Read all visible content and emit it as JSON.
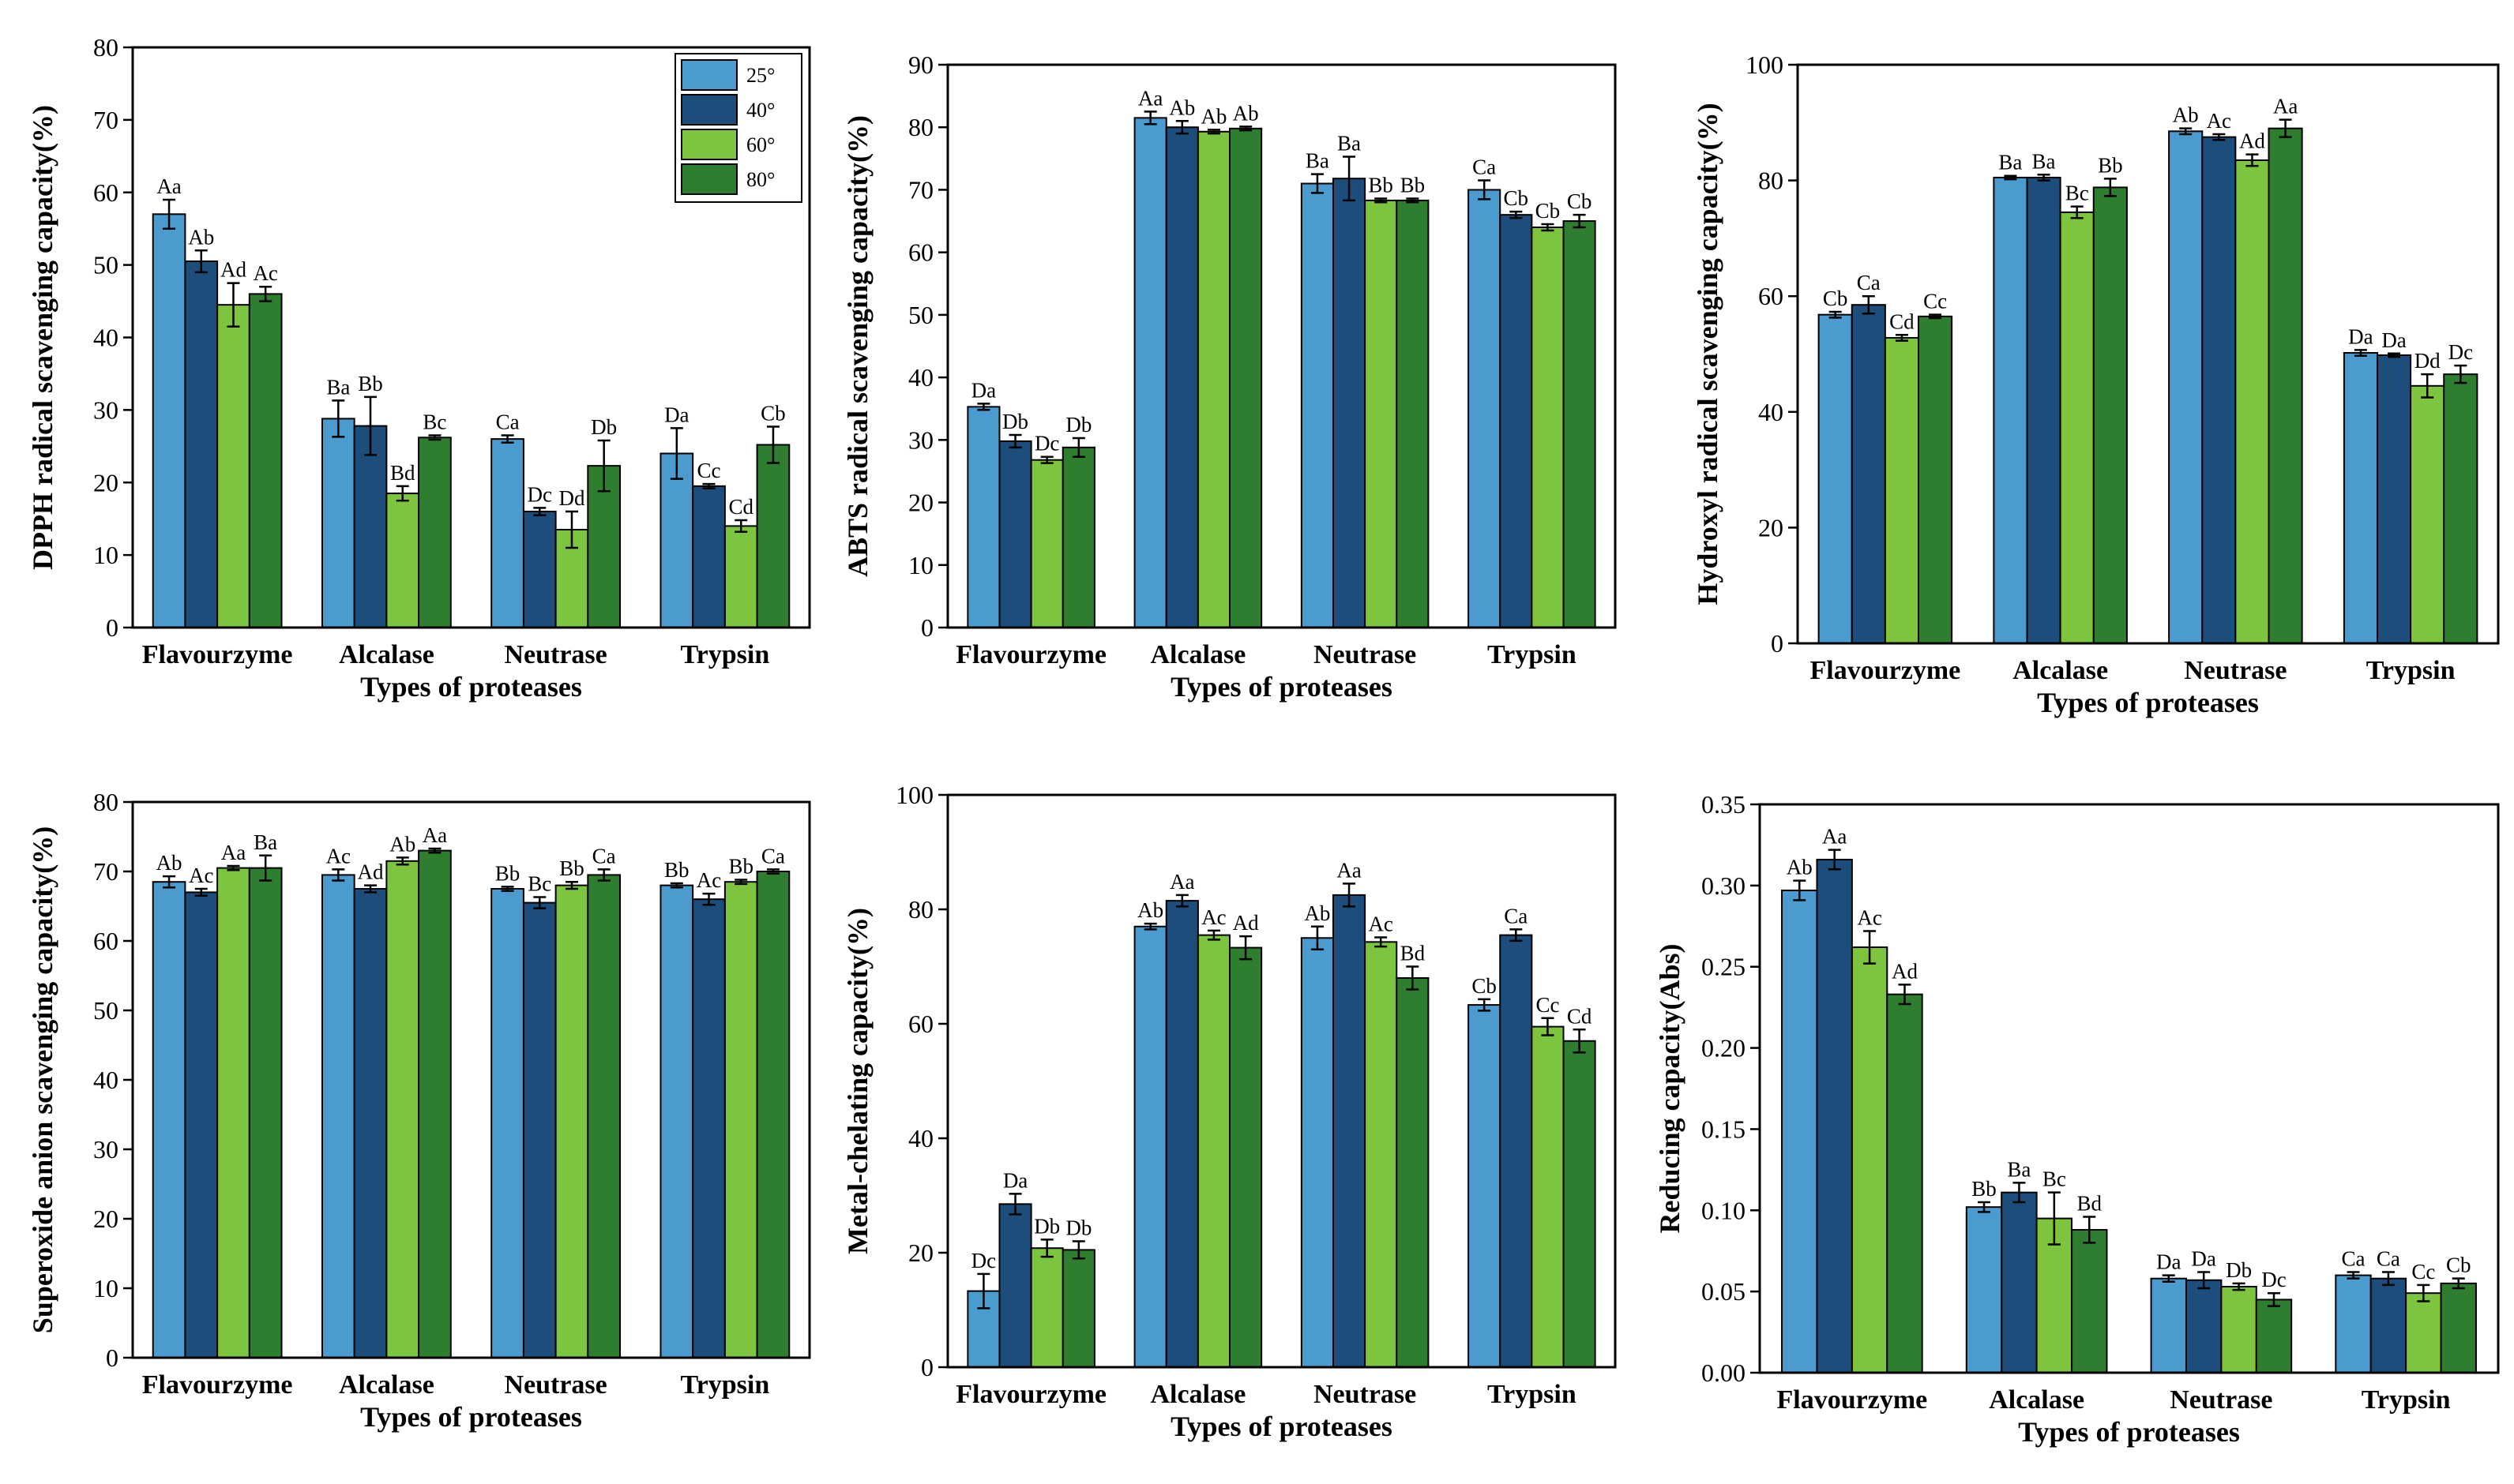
{
  "legend": {
    "labels": [
      "25°",
      "40°",
      "60°",
      "80°"
    ],
    "colors": [
      "#4b9bcf",
      "#1d4d7a",
      "#7ec53f",
      "#2f7d2f"
    ]
  },
  "chart_data": [
    {
      "type": "bar",
      "categories": [
        "Flavourzyme",
        "Alcalase",
        "Neutrase",
        "Trypsin"
      ],
      "xlabel": "Types of proteases",
      "ylabel": "DPPH radical scavenging capacity(%)",
      "ylim": [
        0,
        80
      ],
      "yticks": [
        "0",
        "10",
        "20",
        "30",
        "40",
        "50",
        "60",
        "70",
        "80"
      ],
      "legend_shown": true,
      "series": [
        {
          "name": "25°",
          "values": [
            57,
            28.8,
            26,
            24
          ],
          "errors": [
            2,
            2.5,
            0.5,
            3.5
          ],
          "labels": [
            "Aa",
            "Ba",
            "Ca",
            "Da"
          ]
        },
        {
          "name": "40°",
          "values": [
            50.5,
            27.8,
            16,
            19.5
          ],
          "errors": [
            1.5,
            4,
            0.5,
            0.3
          ],
          "labels": [
            "Ab",
            "Bb",
            "Dc",
            "Cc"
          ]
        },
        {
          "name": "60°",
          "values": [
            44.5,
            18.5,
            13.5,
            14
          ],
          "errors": [
            3,
            1,
            2.5,
            0.8
          ],
          "labels": [
            "Ad",
            "Bd",
            "Dd",
            "Cd"
          ]
        },
        {
          "name": "80°",
          "values": [
            46,
            26.2,
            22.3,
            25.2
          ],
          "errors": [
            1,
            0.3,
            3.5,
            2.5
          ],
          "labels": [
            "Ac",
            "Bc",
            "Db",
            "Cb"
          ]
        }
      ]
    },
    {
      "type": "bar",
      "categories": [
        "Flavourzyme",
        "Alcalase",
        "Neutrase",
        "Trypsin"
      ],
      "xlabel": "Types of proteases",
      "ylabel": "ABTS radical scavenging capacity(%)",
      "ylim": [
        0,
        90
      ],
      "yticks": [
        "0",
        "10",
        "20",
        "30",
        "40",
        "50",
        "60",
        "70",
        "80",
        "90"
      ],
      "legend_shown": false,
      "series": [
        {
          "name": "25°",
          "values": [
            35.3,
            81.5,
            71,
            70
          ],
          "errors": [
            0.5,
            1,
            1.5,
            1.5
          ],
          "labels": [
            "Da",
            "Aa",
            "Ba",
            "Ca"
          ]
        },
        {
          "name": "40°",
          "values": [
            29.8,
            80,
            71.8,
            66
          ],
          "errors": [
            1,
            1,
            3.5,
            0.5
          ],
          "labels": [
            "Db",
            "Ab",
            "Ba",
            "Cb"
          ]
        },
        {
          "name": "60°",
          "values": [
            26.8,
            79.3,
            68.3,
            64
          ],
          "errors": [
            0.5,
            0.3,
            0.3,
            0.5
          ],
          "labels": [
            "Dc",
            "Ab",
            "Bb",
            "Cb"
          ]
        },
        {
          "name": "80°",
          "values": [
            28.8,
            79.8,
            68.3,
            65
          ],
          "errors": [
            1.5,
            0.3,
            0.3,
            1
          ],
          "labels": [
            "Db",
            "Ab",
            "Bb",
            "Cb"
          ]
        }
      ]
    },
    {
      "type": "bar",
      "categories": [
        "Flavourzyme",
        "Alcalase",
        "Neutrase",
        "Trypsin"
      ],
      "xlabel": "Types of proteases",
      "ylabel": "Hydroxyl radical scavenging capacity(%)",
      "ylim": [
        0,
        100
      ],
      "yticks": [
        "0",
        "20",
        "40",
        "60",
        "80",
        "100"
      ],
      "legend_shown": false,
      "series": [
        {
          "name": "25°",
          "values": [
            56.8,
            80.5,
            88.5,
            50.2
          ],
          "errors": [
            0.5,
            0.3,
            0.5,
            0.5
          ],
          "labels": [
            "Cb",
            "Ba",
            "Ab",
            "Da"
          ]
        },
        {
          "name": "40°",
          "values": [
            58.5,
            80.5,
            87.5,
            49.8
          ],
          "errors": [
            1.5,
            0.5,
            0.5,
            0.3
          ],
          "labels": [
            "Ca",
            "Ba",
            "Ac",
            "Da"
          ]
        },
        {
          "name": "60°",
          "values": [
            52.8,
            74.5,
            83.5,
            44.5
          ],
          "errors": [
            0.5,
            1,
            1,
            2
          ],
          "labels": [
            "Cd",
            "Bc",
            "Ad",
            "Dd"
          ]
        },
        {
          "name": "80°",
          "values": [
            56.5,
            78.8,
            89,
            46.5
          ],
          "errors": [
            0.3,
            1.5,
            1.5,
            1.5
          ],
          "labels": [
            "Cc",
            "Bb",
            "Aa",
            "Dc"
          ]
        }
      ]
    },
    {
      "type": "bar",
      "categories": [
        "Flavourzyme",
        "Alcalase",
        "Neutrase",
        "Trypsin"
      ],
      "xlabel": "Types of proteases",
      "ylabel": "Superoxide anion  scavenging capacity(%)",
      "ylim": [
        0,
        80
      ],
      "yticks": [
        "0",
        "10",
        "20",
        "30",
        "40",
        "50",
        "60",
        "70",
        "80"
      ],
      "legend_shown": false,
      "series": [
        {
          "name": "25°",
          "values": [
            68.5,
            69.5,
            67.5,
            68
          ],
          "errors": [
            0.8,
            0.8,
            0.3,
            0.3
          ],
          "labels": [
            "Ab",
            "Ac",
            "Bb",
            "Bb"
          ]
        },
        {
          "name": "40°",
          "values": [
            67,
            67.5,
            65.5,
            66
          ],
          "errors": [
            0.5,
            0.5,
            0.8,
            0.8
          ],
          "labels": [
            "Ac",
            "Ad",
            "Bc",
            "Ac"
          ]
        },
        {
          "name": "60°",
          "values": [
            70.5,
            71.5,
            68,
            68.5
          ],
          "errors": [
            0.3,
            0.5,
            0.5,
            0.3
          ],
          "labels": [
            "Aa",
            "Ab",
            "Bb",
            "Bb"
          ]
        },
        {
          "name": "80°",
          "values": [
            70.5,
            73,
            69.5,
            70
          ],
          "errors": [
            1.8,
            0.3,
            0.8,
            0.3
          ],
          "labels": [
            "Ba",
            "Aa",
            "Ca",
            "Ca"
          ]
        }
      ]
    },
    {
      "type": "bar",
      "categories": [
        "Flavourzyme",
        "Alcalase",
        "Neutrase",
        "Trypsin"
      ],
      "xlabel": "Types of proteases",
      "ylabel": "Metal-chelating capacity(%)",
      "ylim": [
        0,
        100
      ],
      "yticks": [
        "0",
        "20",
        "40",
        "60",
        "80",
        "100"
      ],
      "legend_shown": false,
      "series": [
        {
          "name": "25°",
          "values": [
            13.3,
            77,
            75,
            63.3
          ],
          "errors": [
            3,
            0.5,
            2,
            1
          ],
          "labels": [
            "Dc",
            "Ab",
            "Ab",
            "Cb"
          ]
        },
        {
          "name": "40°",
          "values": [
            28.5,
            81.5,
            82.5,
            75.5
          ],
          "errors": [
            1.8,
            1,
            2,
            1
          ],
          "labels": [
            "Da",
            "Aa",
            "Aa",
            "Ca"
          ]
        },
        {
          "name": "60°",
          "values": [
            20.8,
            75.5,
            74.3,
            59.5
          ],
          "errors": [
            1.5,
            0.8,
            0.8,
            1.5
          ],
          "labels": [
            "Db",
            "Ac",
            "Ac",
            "Cc"
          ]
        },
        {
          "name": "80°",
          "values": [
            20.5,
            73.3,
            68,
            57
          ],
          "errors": [
            1.5,
            2,
            2,
            2
          ],
          "labels": [
            "Db",
            "Ad",
            "Bd",
            "Cd"
          ]
        }
      ]
    },
    {
      "type": "bar",
      "categories": [
        "Flavourzyme",
        "Alcalase",
        "Neutrase",
        "Trypsin"
      ],
      "xlabel": "Types of proteases",
      "ylabel": "Reducing capacity(Abs)",
      "ylim": [
        0,
        0.35
      ],
      "yticks": [
        "0.00",
        "0.05",
        "0.10",
        "0.15",
        "0.20",
        "0.25",
        "0.30",
        "0.35"
      ],
      "legend_shown": false,
      "series": [
        {
          "name": "25°",
          "values": [
            0.297,
            0.102,
            0.058,
            0.06
          ],
          "errors": [
            0.006,
            0.003,
            0.002,
            0.002
          ],
          "labels": [
            "Ab",
            "Bb",
            "Da",
            "Ca"
          ]
        },
        {
          "name": "40°",
          "values": [
            0.316,
            0.111,
            0.057,
            0.058
          ],
          "errors": [
            0.006,
            0.006,
            0.005,
            0.004
          ],
          "labels": [
            "Aa",
            "Ba",
            "Da",
            "Ca"
          ]
        },
        {
          "name": "60°",
          "values": [
            0.262,
            0.095,
            0.053,
            0.049
          ],
          "errors": [
            0.01,
            0.016,
            0.002,
            0.005
          ],
          "labels": [
            "Ac",
            "Bc",
            "Db",
            "Cc"
          ]
        },
        {
          "name": "80°",
          "values": [
            0.233,
            0.088,
            0.045,
            0.055
          ],
          "errors": [
            0.006,
            0.008,
            0.004,
            0.003
          ],
          "labels": [
            "Ad",
            "Bd",
            "Dc",
            "Cb"
          ]
        }
      ]
    }
  ]
}
